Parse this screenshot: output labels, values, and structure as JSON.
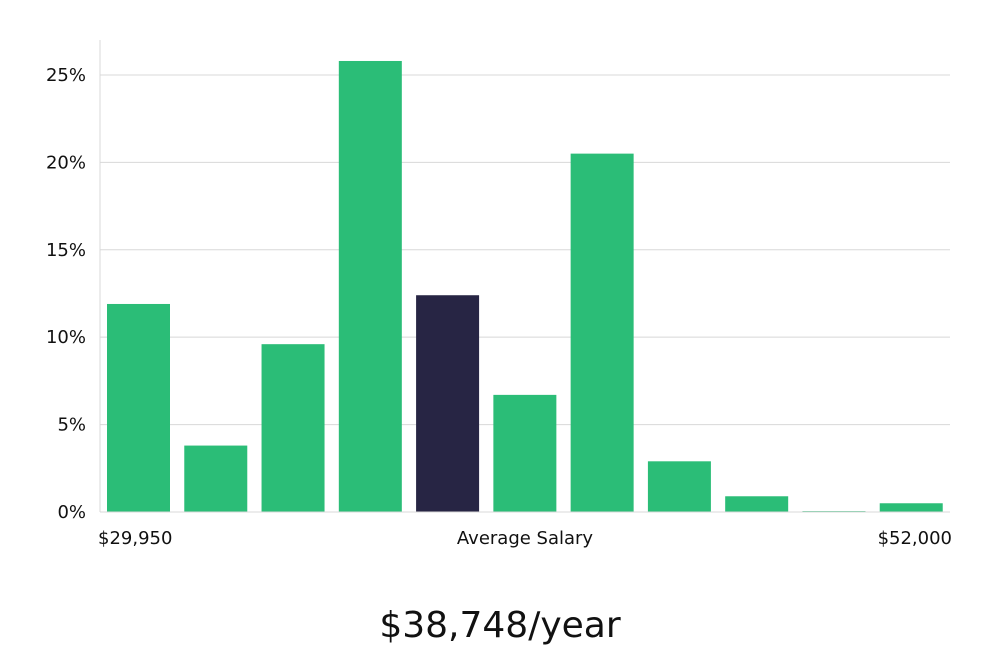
{
  "chart_data": {
    "type": "bar",
    "categories": [
      "",
      "",
      "",
      "",
      "",
      "",
      "",
      "",
      "",
      "",
      ""
    ],
    "values": [
      11.9,
      3.8,
      9.6,
      25.8,
      12.4,
      6.7,
      20.5,
      2.9,
      0.9,
      0.05,
      0.5
    ],
    "highlight_index": 4,
    "colors": {
      "bar": "#2bbd77",
      "highlight": "#272544",
      "grid": "#d8d8d8",
      "axis": "#d8d8d8"
    },
    "ylim": [
      0,
      27
    ],
    "yticks": [
      0,
      5,
      10,
      15,
      20,
      25
    ],
    "ytick_labels": [
      "0%",
      "5%",
      "10%",
      "15%",
      "20%",
      "25%"
    ],
    "grid": true,
    "xlabel": "Average Salary",
    "x_min_label": "$29,950",
    "x_max_label": "$52,000"
  },
  "summary": {
    "average_salary": "$38,748/year"
  }
}
